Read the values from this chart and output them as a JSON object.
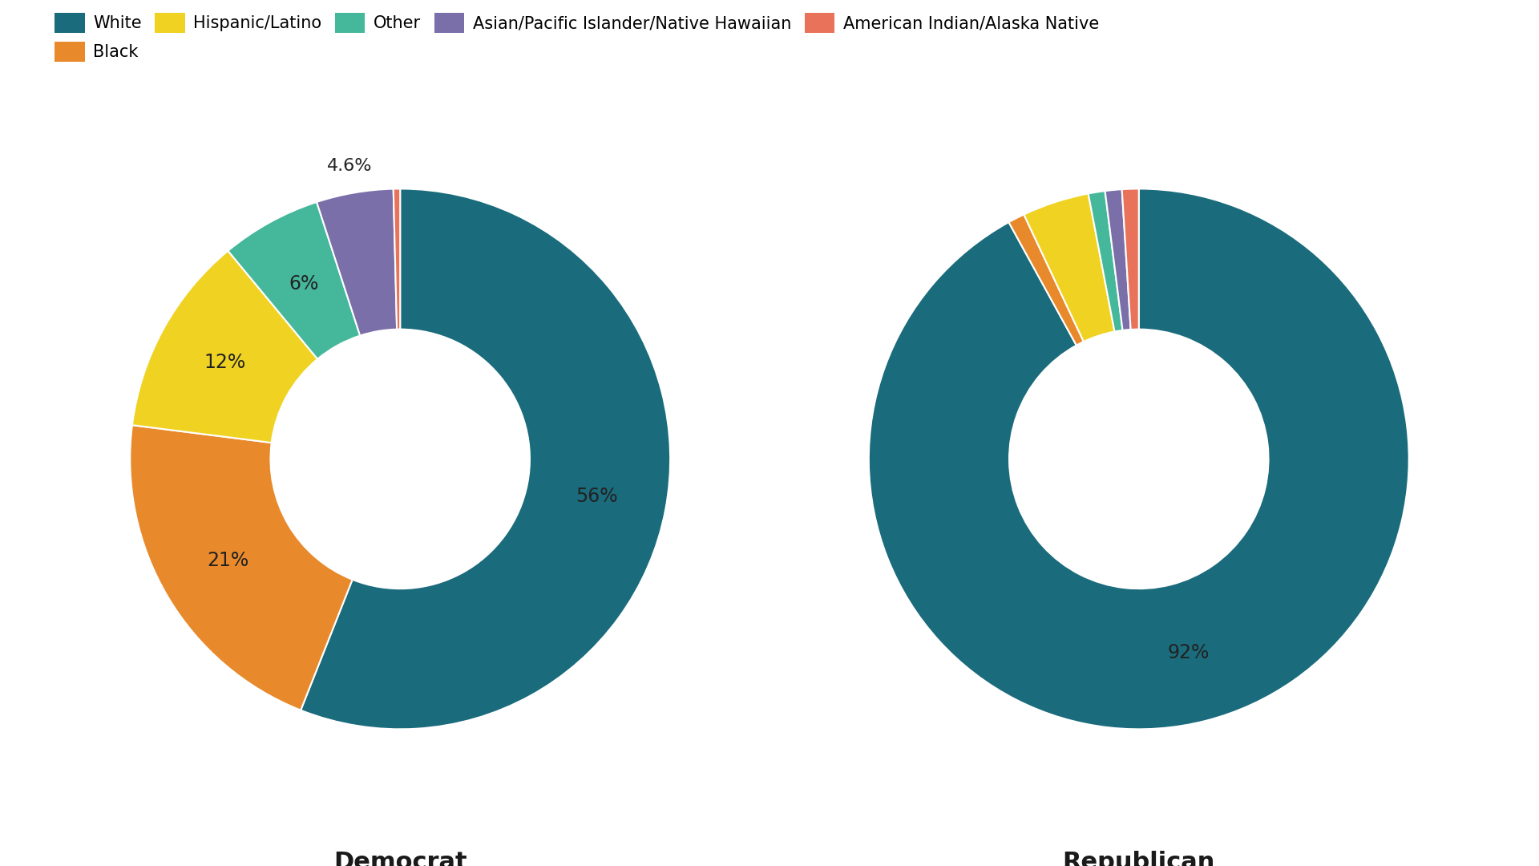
{
  "democrat": {
    "labels": [
      "White",
      "Black",
      "Hispanic/Latino",
      "Other",
      "Asian/Pacific Islander/Native Hawaiian",
      "American Indian/Alaska Native"
    ],
    "values": [
      56,
      21,
      12,
      6,
      4.6,
      0.4
    ],
    "label_display": [
      "56%",
      "21%",
      "12%",
      "6%",
      "4.6%",
      ""
    ]
  },
  "republican": {
    "labels": [
      "White",
      "Black",
      "Hispanic/Latino",
      "Other",
      "Asian/Pacific Islander/Native Hawaiian",
      "American Indian/Alaska Native"
    ],
    "values": [
      92,
      1,
      4,
      1,
      1,
      1
    ],
    "label_display": [
      "92%",
      "",
      "",
      "",
      "",
      ""
    ]
  },
  "colors": [
    "#1a6b7c",
    "#e8892b",
    "#f0d322",
    "#45b89c",
    "#7b6faa",
    "#e8735a"
  ],
  "dem_label": "Democrat",
  "rep_label": "Republican",
  "dem_underline_color": "#5b9bd5",
  "rep_underline_color": "#cc2222",
  "legend_labels": [
    "White",
    "Black",
    "Hispanic/Latino",
    "Other",
    "Asian/Pacific Islander/Native Hawaiian",
    "American Indian/Alaska Native"
  ],
  "background_color": "#ffffff",
  "label_color_dark": "#222222",
  "label_color_white": "#ffffff"
}
